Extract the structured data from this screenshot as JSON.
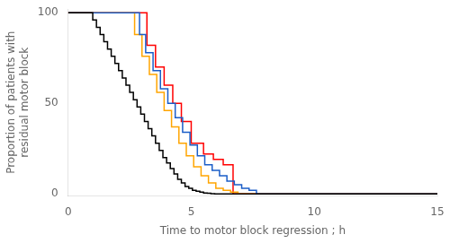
{
  "chart_data": {
    "type": "step",
    "xlabel": "Time to motor block regression ; h",
    "ylabel": "Proportion of patients with\nresidual motor block",
    "xlim": [
      0,
      15
    ],
    "ylim": [
      -1,
      102
    ],
    "xticks": [
      0,
      5,
      10,
      15
    ],
    "yticks": [
      0,
      50,
      100
    ],
    "grid": false,
    "series": [
      {
        "color": "#000000",
        "x": [
          0,
          1.0,
          1.15,
          1.3,
          1.45,
          1.6,
          1.75,
          1.9,
          2.05,
          2.2,
          2.35,
          2.5,
          2.65,
          2.8,
          2.95,
          3.1,
          3.25,
          3.4,
          3.55,
          3.7,
          3.85,
          4.0,
          4.15,
          4.3,
          4.45,
          4.6,
          4.75,
          4.9,
          5.05,
          5.2,
          5.35,
          5.5,
          5.65,
          5.8,
          5.95,
          6.1,
          6.25,
          15
        ],
        "values": [
          100,
          100,
          96,
          92,
          88,
          84,
          80,
          76,
          72,
          68,
          64,
          60,
          56,
          52,
          48,
          44,
          40,
          36,
          32,
          28,
          24,
          20,
          17,
          14,
          11,
          8,
          6,
          4,
          3,
          2,
          1.5,
          1,
          0.5,
          0.3,
          0.1,
          0,
          0,
          0
        ]
      },
      {
        "color": "#1A5DC8",
        "x": [
          0,
          2.9,
          3.15,
          3.45,
          3.75,
          4.05,
          4.35,
          4.65,
          4.95,
          5.25,
          5.55,
          5.85,
          6.15,
          6.45,
          6.75,
          7.05,
          7.35,
          7.65,
          8.0,
          9.2,
          15
        ],
        "values": [
          100,
          100,
          88,
          78,
          68,
          58,
          50,
          42,
          34,
          27,
          21,
          16,
          13,
          10,
          7,
          5,
          3,
          2,
          0,
          0,
          0
        ]
      },
      {
        "color": "#FFA500",
        "x": [
          0,
          2.7,
          3.0,
          3.3,
          3.6,
          3.9,
          4.2,
          4.5,
          4.8,
          5.1,
          5.4,
          5.7,
          6.0,
          6.3,
          6.6,
          6.9,
          7.1,
          10.3,
          15
        ],
        "values": [
          100,
          100,
          88,
          76,
          66,
          56,
          46,
          37,
          28,
          21,
          15,
          10,
          6,
          3,
          2,
          1,
          0,
          0,
          0
        ]
      },
      {
        "color": "#FF0000",
        "x": [
          0,
          3.2,
          3.55,
          3.9,
          4.25,
          4.6,
          5.0,
          5.5,
          5.9,
          6.3,
          6.7,
          7.5,
          7.8,
          15
        ],
        "values": [
          100,
          100,
          82,
          70,
          60,
          50,
          40,
          28,
          22,
          19,
          16,
          0,
          0,
          0
        ]
      }
    ]
  }
}
